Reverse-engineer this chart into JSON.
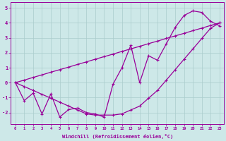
{
  "xlabel": "Windchill (Refroidissement éolien,°C)",
  "bg_color": "#cde8e8",
  "line_color": "#990099",
  "grid_color": "#aacccc",
  "x_data": [
    0,
    1,
    2,
    3,
    4,
    5,
    6,
    7,
    8,
    9,
    10,
    11,
    12,
    13,
    14,
    15,
    16,
    17,
    18,
    19,
    20,
    21,
    22,
    23
  ],
  "y_jagged": [
    0.0,
    -1.2,
    -0.7,
    -2.1,
    -0.75,
    -2.3,
    -1.8,
    -1.7,
    -2.0,
    -2.1,
    -2.3,
    -0.1,
    1.0,
    2.5,
    0.0,
    1.8,
    1.5,
    2.6,
    3.7,
    4.5,
    4.8,
    4.7,
    4.1,
    3.8
  ],
  "y_upper": [
    0.0,
    0.17,
    0.35,
    0.52,
    0.7,
    0.87,
    1.04,
    1.22,
    1.39,
    1.57,
    1.74,
    1.91,
    2.09,
    2.26,
    2.43,
    2.61,
    2.78,
    2.96,
    3.13,
    3.3,
    3.48,
    3.65,
    3.83,
    4.0
  ],
  "y_lower": [
    0.0,
    -0.26,
    -0.52,
    -0.78,
    -1.04,
    -1.3,
    -1.57,
    -1.83,
    -2.09,
    -2.17,
    -2.17,
    -2.17,
    -2.09,
    -1.83,
    -1.57,
    -1.04,
    -0.52,
    0.17,
    0.87,
    1.57,
    2.26,
    2.96,
    3.65,
    4.0
  ],
  "ylim": [
    -2.75,
    5.4
  ],
  "xlim": [
    -0.5,
    23.5
  ],
  "yticks": [
    -2,
    -1,
    0,
    1,
    2,
    3,
    4,
    5
  ],
  "xticks": [
    0,
    1,
    2,
    3,
    4,
    5,
    6,
    7,
    8,
    9,
    10,
    11,
    12,
    13,
    14,
    15,
    16,
    17,
    18,
    19,
    20,
    21,
    22,
    23
  ]
}
